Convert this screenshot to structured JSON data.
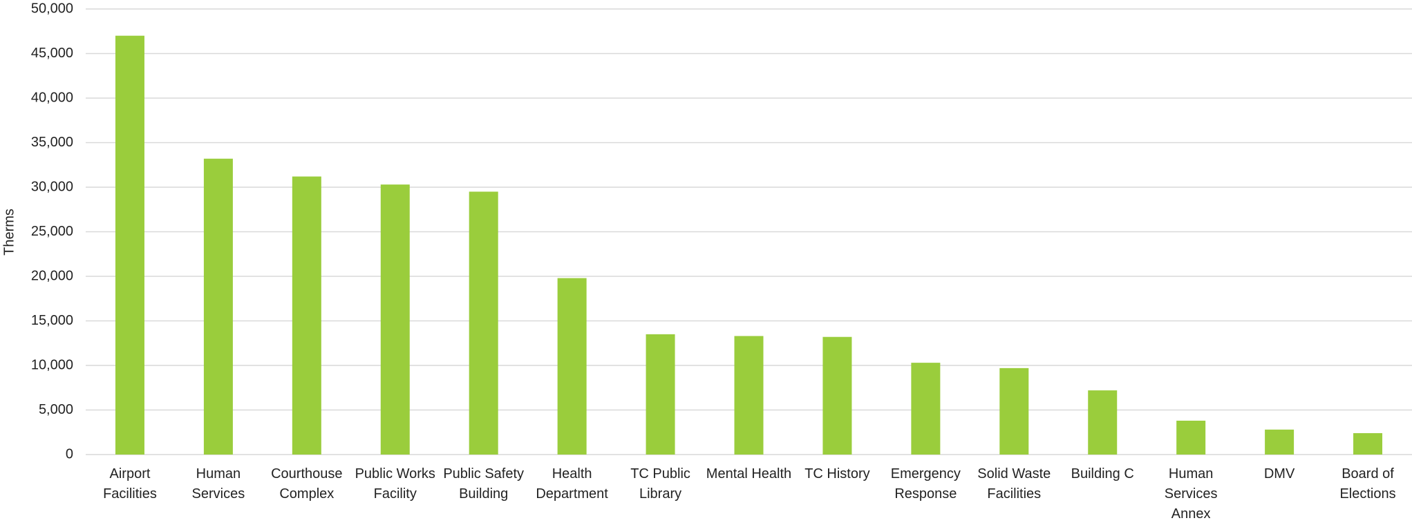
{
  "chart_data": {
    "type": "bar",
    "y_label": "Therms",
    "categories": [
      "Airport Facilities",
      "Human Services",
      "Courthouse Complex",
      "Public Works Facility",
      "Public Safety Building",
      "Health Department",
      "TC Public Library",
      "Mental Health",
      "TC History",
      "Emergency Response",
      "Solid Waste Facilities",
      "Building C",
      "Human Services Annex",
      "DMV",
      "Board of Elections"
    ],
    "values": [
      47000,
      33200,
      31200,
      30300,
      29500,
      19800,
      13500,
      13300,
      13200,
      10300,
      9700,
      7200,
      3800,
      2800,
      2400
    ],
    "color": "#9acd3c",
    "ylim": [
      0,
      50000
    ],
    "yticks": [
      0,
      {
        "value": 5000,
        "label": "5,000"
      },
      {
        "value": 10000,
        "label": "10,000"
      },
      {
        "value": 15000,
        "label": "15,000"
      },
      {
        "value": 20000,
        "label": "20,000"
      },
      {
        "value": 25000,
        "label": "25,000"
      },
      {
        "value": 30000,
        "label": "30,000"
      },
      {
        "value": 35000,
        "label": "35,000"
      },
      {
        "value": 40000,
        "label": "40,000"
      },
      {
        "value": 45000,
        "label": "45,000"
      },
      {
        "value": 50000,
        "label": "50,000"
      }
    ],
    "grid": true
  }
}
